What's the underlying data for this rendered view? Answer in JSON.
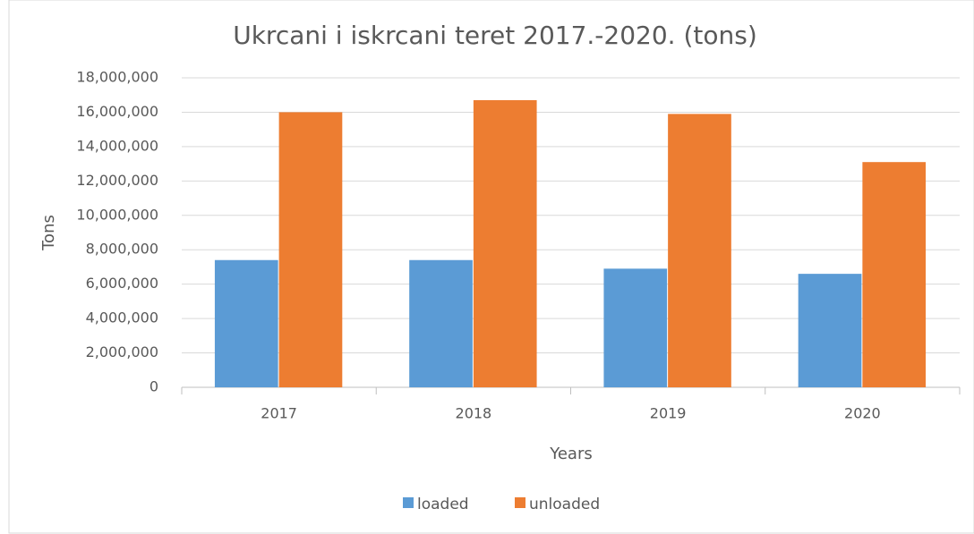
{
  "chart_data": {
    "type": "bar",
    "title": "Ukrcani i iskrcani teret 2017.-2020. (tons)",
    "x_label": "Years",
    "y_label": "Tons",
    "categories": [
      "2017",
      "2018",
      "2019",
      "2020"
    ],
    "series": [
      {
        "name": "loaded",
        "color": "#5b9bd5",
        "values": [
          7400000,
          7400000,
          6900000,
          6600000
        ]
      },
      {
        "name": "unloaded",
        "color": "#ed7d31",
        "values": [
          16000000,
          16700000,
          15900000,
          13100000
        ]
      }
    ],
    "ylim": [
      0,
      18000000
    ],
    "yticks": [
      0,
      {
        "value": 2000000,
        "label": "2,000,000"
      },
      {
        "value": 4000000,
        "label": "4,000,000"
      },
      {
        "value": 6000000,
        "label": "6,000,000"
      },
      {
        "value": 8000000,
        "label": "8,000,000"
      },
      {
        "value": 10000000,
        "label": "10,000,000"
      },
      {
        "value": 12000000,
        "label": "12,000,000"
      },
      {
        "value": 14000000,
        "label": "14,000,000"
      },
      {
        "value": 16000000,
        "label": "16,000,000"
      },
      {
        "value": 18000000,
        "label": "18,000,000"
      }
    ],
    "grid": true,
    "legend": "bottom"
  }
}
